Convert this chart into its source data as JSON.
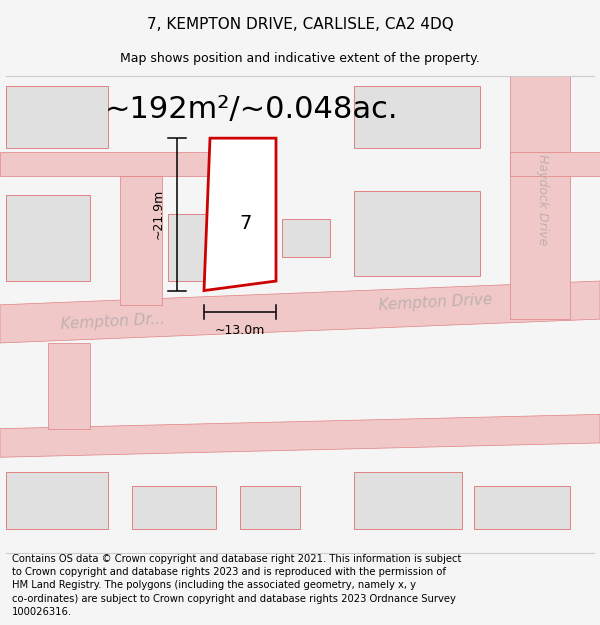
{
  "title": "7, KEMPTON DRIVE, CARLISLE, CA2 4DQ",
  "subtitle": "Map shows position and indicative extent of the property.",
  "area_text": "~192m²/~0.048ac.",
  "number_label": "7",
  "dim_width": "~13.0m",
  "dim_height": "~21.9m",
  "footer": "Contains OS data © Crown copyright and database right 2021. This information is subject to Crown copyright and database rights 2023 and is reproduced with the permission of HM Land Registry. The polygons (including the associated geometry, namely x, y co-ordinates) are subject to Crown copyright and database rights 2023 Ordnance Survey 100026316.",
  "bg_color": "#f5f5f5",
  "map_bg": "#ffffff",
  "road_color": "#f0c8c8",
  "road_stroke": "#e08080",
  "highlight_color": "#cc0000",
  "building_fill": "#e0e0e0",
  "building_stroke": "#e08080",
  "title_fontsize": 11,
  "subtitle_fontsize": 9,
  "area_fontsize": 22,
  "footer_fontsize": 7.2,
  "road_label_color": "#c0b0b0",
  "road_label_fontsize": 11
}
